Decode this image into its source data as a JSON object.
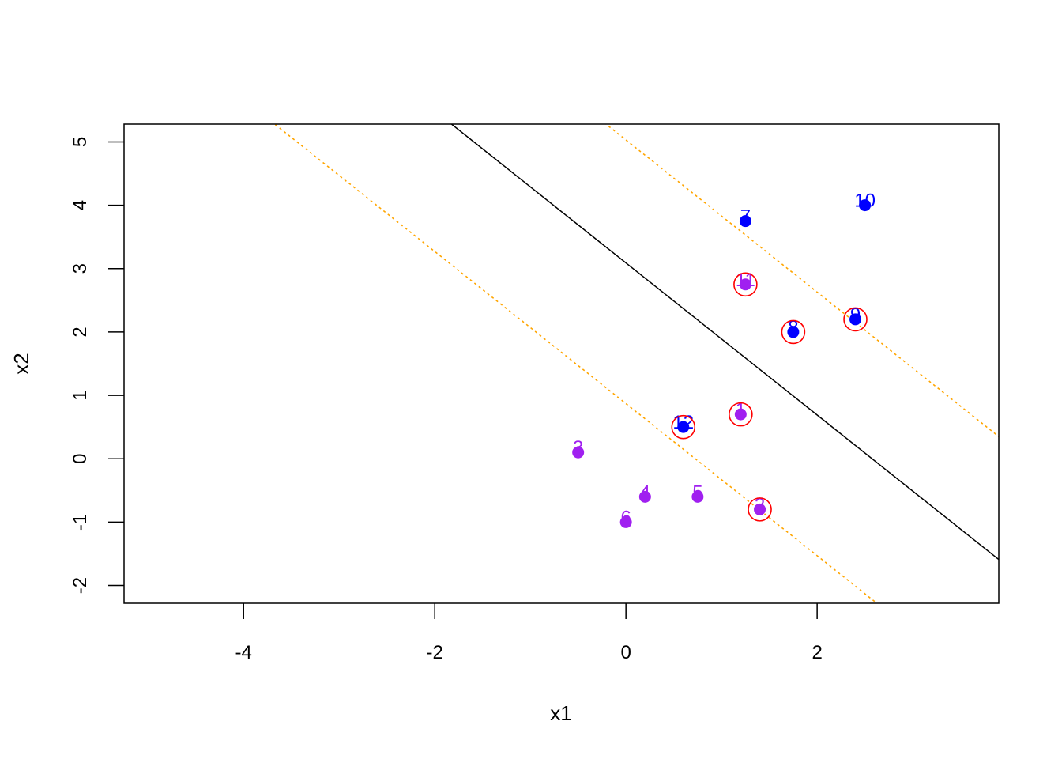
{
  "chart_data": {
    "type": "scatter",
    "title": "",
    "xlabel": "x1",
    "ylabel": "x2",
    "xlim": [
      -5.25,
      3.9
    ],
    "ylim": [
      -2.28,
      5.28
    ],
    "xticks": [
      -4,
      -2,
      0,
      2
    ],
    "yticks": [
      -2,
      -1,
      0,
      1,
      2,
      3,
      4,
      5
    ],
    "grid": false,
    "legend": "none",
    "colors": {
      "class_a": "#0000ff",
      "class_b": "#a020f0",
      "support_circle": "#ff0000",
      "boundary": "#000000",
      "margin": "#ffa500"
    },
    "points": [
      {
        "label": "1",
        "x": 1.2,
        "y": 0.7,
        "class": "class_b",
        "support": true
      },
      {
        "label": "2",
        "x": 1.4,
        "y": -0.8,
        "class": "class_b",
        "support": true
      },
      {
        "label": "3",
        "x": -0.5,
        "y": 0.1,
        "class": "class_b",
        "support": false
      },
      {
        "label": "4",
        "x": 0.2,
        "y": -0.6,
        "class": "class_b",
        "support": false
      },
      {
        "label": "5",
        "x": 0.75,
        "y": -0.6,
        "class": "class_b",
        "support": false
      },
      {
        "label": "6",
        "x": 0.0,
        "y": -1.0,
        "class": "class_b",
        "support": false
      },
      {
        "label": "7",
        "x": 1.25,
        "y": 3.75,
        "class": "class_a",
        "support": false
      },
      {
        "label": "8",
        "x": 1.75,
        "y": 2.0,
        "class": "class_a",
        "support": true
      },
      {
        "label": "9",
        "x": 2.4,
        "y": 2.2,
        "class": "class_a",
        "support": true
      },
      {
        "label": "10",
        "x": 2.5,
        "y": 4.0,
        "class": "class_a",
        "support": false
      },
      {
        "label": "11",
        "x": 1.25,
        "y": 2.75,
        "class": "class_b",
        "support": true
      },
      {
        "label": "12",
        "x": 0.6,
        "y": 0.5,
        "class": "class_a",
        "support": true
      }
    ],
    "lines": [
      {
        "name": "decision-boundary",
        "intercept": 3.09,
        "slope": -1.2,
        "style": "solid",
        "color_key": "boundary"
      },
      {
        "name": "margin-upper",
        "intercept": 5.03,
        "slope": -1.2,
        "style": "dotted",
        "color_key": "margin"
      },
      {
        "name": "margin-lower",
        "intercept": 0.87,
        "slope": -1.2,
        "style": "dotted",
        "color_key": "margin"
      }
    ]
  }
}
